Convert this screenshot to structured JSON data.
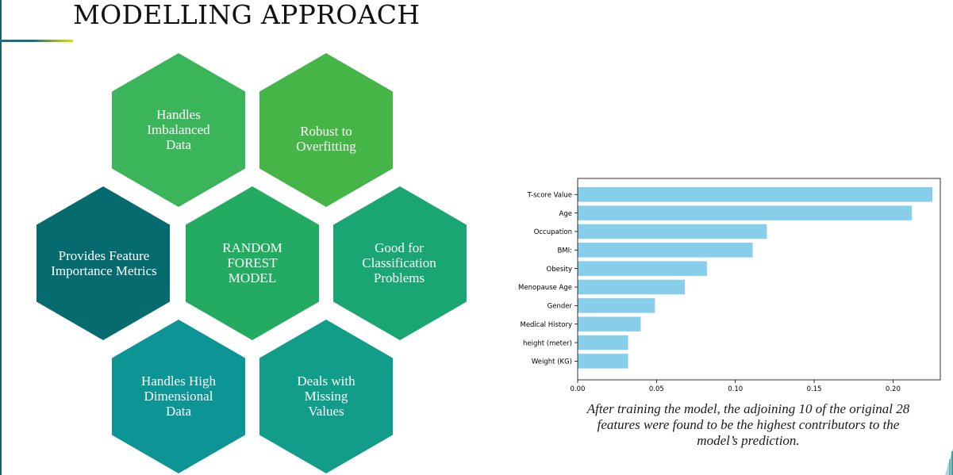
{
  "slide": {
    "title": "MODELLING APPROACH",
    "caption": "After training the model, the adjoining 10 of the original 28 features were found to be the highest contributors to the model’s prediction."
  },
  "hexagons": [
    {
      "id": "imbalanced",
      "label": "Handles\nImbalanced\nData",
      "color": "#3bb55a"
    },
    {
      "id": "overfitting",
      "label": "Robust to\nOverfitting",
      "color": "#45b548"
    },
    {
      "id": "feature-importance",
      "label": "Provides Feature\nImportance Metrics",
      "color": "#066b6e"
    },
    {
      "id": "random-forest",
      "label": "RANDOM\nFOREST\nMODEL",
      "color": "#24ab62"
    },
    {
      "id": "classification",
      "label": "Good for\nClassification\nProblems",
      "color": "#19a673"
    },
    {
      "id": "high-dimensional",
      "label": "Handles High\nDimensional\nData",
      "color": "#0d9495"
    },
    {
      "id": "missing-values",
      "label": "Deals with\nMissing\nValues",
      "color": "#129d8a"
    }
  ],
  "chart_data": {
    "type": "bar",
    "orientation": "horizontal",
    "categories": [
      "T-score Value",
      "Age",
      "Occupation",
      "BMI:",
      "Obesity",
      "Menopause Age",
      "Gender",
      "Medical History",
      "height  (meter)",
      "Weight (KG)"
    ],
    "values": [
      0.225,
      0.212,
      0.12,
      0.111,
      0.082,
      0.068,
      0.049,
      0.04,
      0.032,
      0.032
    ],
    "xlim": [
      0,
      0.23
    ],
    "xticks": [
      "0.00",
      "0.05",
      "0.10",
      "0.15",
      "0.20"
    ],
    "xtick_values": [
      0,
      0.05,
      0.1,
      0.15,
      0.2
    ],
    "bar_color": "#87ceeb",
    "title": "",
    "xlabel": "",
    "ylabel": "",
    "grid": false,
    "legend": "none"
  }
}
